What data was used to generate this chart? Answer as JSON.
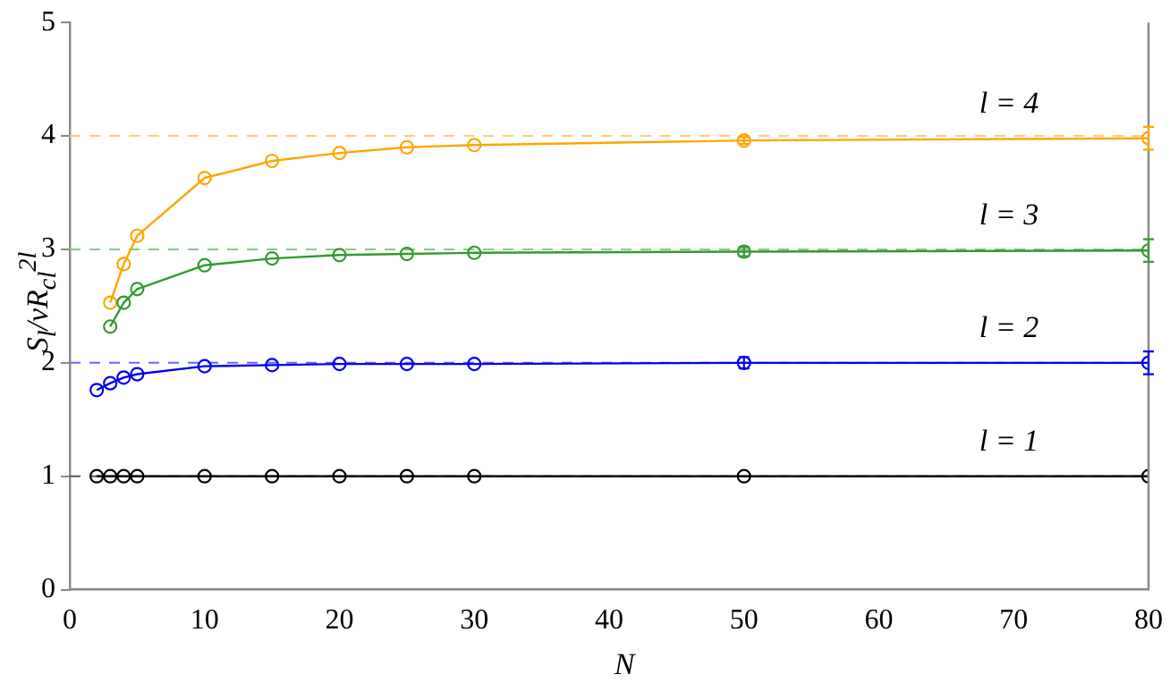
{
  "chart_data": {
    "type": "line",
    "xlabel": "N",
    "ylabel": "S$_{l}$/νR$_{cl}$$^{2l}$",
    "x": [
      2,
      3,
      4,
      5,
      10,
      15,
      20,
      25,
      30,
      50,
      80
    ],
    "series": [
      {
        "name": "l = 1",
        "color": "#000000",
        "values": [
          1,
          1,
          1,
          1,
          1,
          1,
          1,
          1,
          1,
          1,
          1
        ]
      },
      {
        "name": "l = 2",
        "color": "#0000ee",
        "values": [
          1.76,
          1.82,
          1.87,
          1.9,
          1.97,
          1.98,
          1.99,
          1.99,
          1.99,
          2.0,
          2.0
        ],
        "errors": [
          null,
          null,
          null,
          null,
          null,
          null,
          null,
          null,
          null,
          0.05,
          0.1
        ]
      },
      {
        "name": "l = 3",
        "color": "#339933",
        "values": [
          null,
          2.32,
          2.53,
          2.65,
          2.86,
          2.92,
          2.95,
          2.96,
          2.97,
          2.98,
          2.99
        ],
        "errors": [
          null,
          null,
          null,
          null,
          null,
          null,
          null,
          null,
          null,
          0.04,
          0.1
        ]
      },
      {
        "name": "l = 4",
        "color": "#ffa500",
        "values": [
          null,
          2.53,
          2.87,
          3.12,
          3.63,
          3.78,
          3.85,
          3.9,
          3.92,
          3.96,
          3.98
        ],
        "errors": [
          null,
          null,
          null,
          null,
          null,
          null,
          null,
          null,
          null,
          0.03,
          0.1
        ]
      }
    ],
    "ref_lines": [
      {
        "axis": "y",
        "value": 1,
        "color": "#555555",
        "line_style": "dashed"
      },
      {
        "axis": "y",
        "value": 2,
        "color": "#6666ff",
        "line_style": "dashed"
      },
      {
        "axis": "y",
        "value": 3,
        "color": "#88c888",
        "line_style": "dashed"
      },
      {
        "axis": "y",
        "value": 4,
        "color": "#ffcc77",
        "line_style": "dashed"
      }
    ],
    "xlim": [
      0,
      80
    ],
    "xticks": [
      0,
      10,
      20,
      30,
      40,
      50,
      60,
      70,
      80
    ],
    "ylim": [
      0,
      5
    ],
    "yticks": [
      0,
      1,
      2,
      3,
      4,
      5
    ],
    "grid": false,
    "legend": false,
    "marker": "circle",
    "line_style": "solid"
  }
}
